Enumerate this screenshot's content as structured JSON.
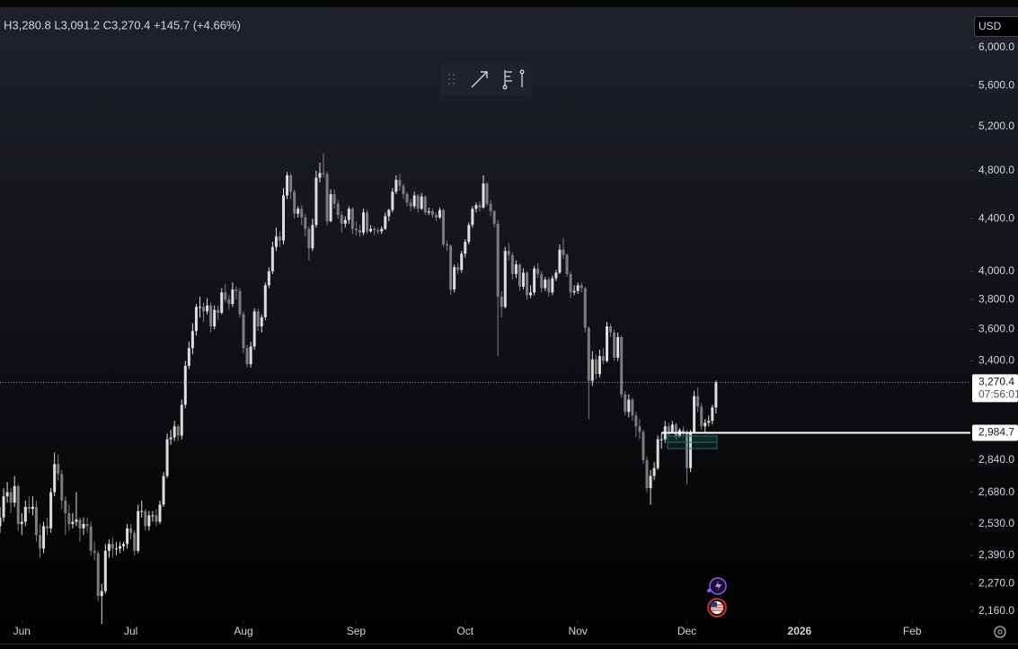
{
  "chart_data": {
    "type": "candlestick",
    "legend_text": "H3,280.8 L3,091.2 C3,270.4 +145.7 (+4.66%)",
    "currency": "USD",
    "log": true,
    "up_color": "#dcdcdc",
    "down_color": "#7c7c80",
    "xlim": [
      -6,
      261
    ],
    "ylim": [
      2125,
      6435
    ],
    "xticks": [
      {
        "value": 0,
        "label": "Jun"
      },
      {
        "value": 30,
        "label": "Jul"
      },
      {
        "value": 61,
        "label": "Aug"
      },
      {
        "value": 92,
        "label": "Sep"
      },
      {
        "value": 122,
        "label": "Oct"
      },
      {
        "value": 153,
        "label": "Nov"
      },
      {
        "value": 183,
        "label": "Dec"
      },
      {
        "value": 214,
        "label": "2026"
      },
      {
        "value": 245,
        "label": "Feb"
      }
    ],
    "yticks": [
      {
        "value": 6000,
        "label": "6,000.0"
      },
      {
        "value": 5600,
        "label": "5,600.0"
      },
      {
        "value": 5200,
        "label": "5,200.0"
      },
      {
        "value": 4800,
        "label": "4,800.0"
      },
      {
        "value": 4400,
        "label": "4,400.0"
      },
      {
        "value": 4000,
        "label": "4,000.0"
      },
      {
        "value": 3800,
        "label": "3,800.0"
      },
      {
        "value": 3600,
        "label": "3,600.0"
      },
      {
        "value": 3400,
        "label": "3,400.0"
      },
      {
        "value": 2840,
        "label": "2,840.0"
      },
      {
        "value": 2680,
        "label": "2,680.0"
      },
      {
        "value": 2530,
        "label": "2,530.0"
      },
      {
        "value": 2390,
        "label": "2,390.0"
      },
      {
        "value": 2270,
        "label": "2,270.0"
      },
      {
        "value": 2160,
        "label": "2,160.0"
      }
    ],
    "last_price": {
      "value": 3270.4,
      "label": "3,270.4",
      "countdown": "07:56:01"
    },
    "hline": {
      "value": 2984.7,
      "label": "2,984.7"
    },
    "x": [
      -6,
      -5,
      -4,
      -3,
      -2,
      -1,
      0,
      1,
      2,
      3,
      4,
      5,
      6,
      7,
      8,
      9,
      10,
      11,
      12,
      13,
      14,
      15,
      16,
      17,
      18,
      19,
      20,
      21,
      22,
      23,
      24,
      25,
      26,
      27,
      28,
      29,
      30,
      31,
      32,
      33,
      34,
      35,
      36,
      37,
      38,
      39,
      40,
      41,
      42,
      43,
      44,
      45,
      46,
      47,
      48,
      49,
      50,
      51,
      52,
      53,
      54,
      55,
      56,
      57,
      58,
      59,
      60,
      61,
      62,
      63,
      64,
      65,
      66,
      67,
      68,
      69,
      70,
      71,
      72,
      73,
      74,
      75,
      76,
      77,
      78,
      79,
      80,
      81,
      82,
      83,
      84,
      85,
      86,
      87,
      88,
      89,
      90,
      91,
      92,
      93,
      94,
      95,
      96,
      97,
      98,
      99,
      100,
      101,
      102,
      103,
      104,
      105,
      106,
      107,
      108,
      109,
      110,
      111,
      112,
      113,
      114,
      115,
      116,
      117,
      118,
      119,
      120,
      121,
      122,
      123,
      124,
      125,
      126,
      127,
      128,
      129,
      130,
      131,
      132,
      133,
      134,
      135,
      136,
      137,
      138,
      139,
      140,
      141,
      142,
      143,
      144,
      145,
      146,
      147,
      148,
      149,
      150,
      151,
      152,
      153,
      154,
      155,
      156,
      157,
      158,
      159,
      160,
      161,
      162,
      163,
      164,
      165,
      166,
      167,
      168,
      169,
      170,
      171,
      172,
      173,
      174,
      175,
      176,
      177,
      178,
      179,
      180,
      181,
      182,
      183,
      184,
      185,
      186,
      187,
      188,
      189,
      190,
      191
    ],
    "candles": [
      [
        2520,
        2610,
        2490,
        2560
      ],
      [
        2560,
        2700,
        2540,
        2660
      ],
      [
        2660,
        2730,
        2630,
        2680
      ],
      [
        2680,
        2700,
        2580,
        2630
      ],
      [
        2630,
        2760,
        2610,
        2710
      ],
      [
        2710,
        2720,
        2500,
        2530
      ],
      [
        2530,
        2580,
        2480,
        2540
      ],
      [
        2540,
        2640,
        2520,
        2610
      ],
      [
        2610,
        2660,
        2580,
        2600
      ],
      [
        2600,
        2660,
        2570,
        2610
      ],
      [
        2610,
        2640,
        2450,
        2480
      ],
      [
        2480,
        2530,
        2380,
        2420
      ],
      [
        2420,
        2540,
        2400,
        2520
      ],
      [
        2520,
        2560,
        2480,
        2510
      ],
      [
        2510,
        2700,
        2490,
        2680
      ],
      [
        2680,
        2880,
        2660,
        2820
      ],
      [
        2820,
        2870,
        2740,
        2770
      ],
      [
        2770,
        2790,
        2600,
        2640
      ],
      [
        2640,
        2660,
        2480,
        2580
      ],
      [
        2580,
        2620,
        2500,
        2530
      ],
      [
        2530,
        2580,
        2510,
        2540
      ],
      [
        2540,
        2680,
        2520,
        2550
      ],
      [
        2550,
        2560,
        2450,
        2510
      ],
      [
        2510,
        2560,
        2480,
        2530
      ],
      [
        2530,
        2560,
        2490,
        2520
      ],
      [
        2520,
        2540,
        2390,
        2410
      ],
      [
        2410,
        2450,
        2370,
        2400
      ],
      [
        2400,
        2410,
        2200,
        2220
      ],
      [
        2220,
        2270,
        2110,
        2240
      ],
      [
        2240,
        2440,
        2230,
        2410
      ],
      [
        2410,
        2460,
        2380,
        2440
      ],
      [
        2440,
        2470,
        2380,
        2420
      ],
      [
        2420,
        2450,
        2390,
        2420
      ],
      [
        2420,
        2450,
        2400,
        2430
      ],
      [
        2430,
        2450,
        2410,
        2440
      ],
      [
        2440,
        2530,
        2420,
        2510
      ],
      [
        2510,
        2530,
        2460,
        2490
      ],
      [
        2490,
        2500,
        2390,
        2410
      ],
      [
        2410,
        2620,
        2400,
        2590
      ],
      [
        2590,
        2640,
        2560,
        2590
      ],
      [
        2590,
        2600,
        2500,
        2520
      ],
      [
        2520,
        2590,
        2500,
        2570
      ],
      [
        2570,
        2590,
        2540,
        2570
      ],
      [
        2570,
        2600,
        2520,
        2540
      ],
      [
        2540,
        2640,
        2530,
        2620
      ],
      [
        2620,
        2780,
        2610,
        2760
      ],
      [
        2760,
        2980,
        2750,
        2950
      ],
      [
        2950,
        3000,
        2920,
        2960
      ],
      [
        2960,
        3050,
        2940,
        3020
      ],
      [
        3020,
        3030,
        2940,
        2970
      ],
      [
        2970,
        3170,
        2950,
        3140
      ],
      [
        3140,
        3400,
        3120,
        3370
      ],
      [
        3370,
        3520,
        3350,
        3480
      ],
      [
        3480,
        3640,
        3440,
        3590
      ],
      [
        3590,
        3770,
        3560,
        3750
      ],
      [
        3750,
        3820,
        3680,
        3750
      ],
      [
        3750,
        3780,
        3650,
        3720
      ],
      [
        3720,
        3810,
        3700,
        3760
      ],
      [
        3760,
        3780,
        3580,
        3620
      ],
      [
        3620,
        3760,
        3600,
        3730
      ],
      [
        3730,
        3760,
        3660,
        3710
      ],
      [
        3710,
        3880,
        3700,
        3850
      ],
      [
        3850,
        3910,
        3780,
        3800
      ],
      [
        3800,
        3830,
        3730,
        3770
      ],
      [
        3770,
        3920,
        3750,
        3870
      ],
      [
        3870,
        3890,
        3800,
        3860
      ],
      [
        3860,
        3880,
        3680,
        3700
      ],
      [
        3700,
        3720,
        3450,
        3480
      ],
      [
        3480,
        3500,
        3360,
        3380
      ],
      [
        3380,
        3520,
        3360,
        3490
      ],
      [
        3490,
        3740,
        3470,
        3720
      ],
      [
        3720,
        3740,
        3590,
        3620
      ],
      [
        3620,
        3700,
        3580,
        3680
      ],
      [
        3680,
        3920,
        3660,
        3900
      ],
      [
        3900,
        4030,
        3880,
        4000
      ],
      [
        4000,
        4220,
        3980,
        4180
      ],
      [
        4180,
        4330,
        4150,
        4260
      ],
      [
        4260,
        4300,
        4180,
        4230
      ],
      [
        4230,
        4650,
        4200,
        4590
      ],
      [
        4590,
        4790,
        4560,
        4760
      ],
      [
        4760,
        4780,
        4560,
        4620
      ],
      [
        4620,
        4640,
        4400,
        4440
      ],
      [
        4440,
        4500,
        4410,
        4480
      ],
      [
        4480,
        4510,
        4350,
        4410
      ],
      [
        4410,
        4440,
        4260,
        4320
      ],
      [
        4320,
        4340,
        4080,
        4170
      ],
      [
        4170,
        4400,
        4150,
        4350
      ],
      [
        4350,
        4800,
        4330,
        4740
      ],
      [
        4740,
        4870,
        4700,
        4780
      ],
      [
        4780,
        4950,
        4740,
        4770
      ],
      [
        4770,
        4790,
        4350,
        4380
      ],
      [
        4380,
        4640,
        4370,
        4600
      ],
      [
        4600,
        4640,
        4480,
        4520
      ],
      [
        4520,
        4550,
        4400,
        4430
      ],
      [
        4430,
        4460,
        4290,
        4360
      ],
      [
        4360,
        4420,
        4330,
        4390
      ],
      [
        4390,
        4500,
        4360,
        4480
      ],
      [
        4480,
        4490,
        4280,
        4320
      ],
      [
        4320,
        4380,
        4270,
        4310
      ],
      [
        4310,
        4350,
        4260,
        4290
      ],
      [
        4290,
        4480,
        4270,
        4450
      ],
      [
        4450,
        4470,
        4280,
        4300
      ],
      [
        4300,
        4350,
        4290,
        4320
      ],
      [
        4320,
        4340,
        4270,
        4310
      ],
      [
        4310,
        4330,
        4280,
        4300
      ],
      [
        4300,
        4340,
        4280,
        4320
      ],
      [
        4320,
        4450,
        4310,
        4420
      ],
      [
        4420,
        4480,
        4380,
        4470
      ],
      [
        4470,
        4650,
        4450,
        4620
      ],
      [
        4620,
        4760,
        4600,
        4720
      ],
      [
        4720,
        4770,
        4630,
        4670
      ],
      [
        4670,
        4690,
        4560,
        4600
      ],
      [
        4600,
        4620,
        4500,
        4530
      ],
      [
        4530,
        4560,
        4460,
        4500
      ],
      [
        4500,
        4620,
        4480,
        4590
      ],
      [
        4590,
        4600,
        4450,
        4480
      ],
      [
        4480,
        4610,
        4470,
        4580
      ],
      [
        4580,
        4590,
        4430,
        4450
      ],
      [
        4450,
        4490,
        4430,
        4460
      ],
      [
        4460,
        4480,
        4410,
        4430
      ],
      [
        4430,
        4450,
        4380,
        4410
      ],
      [
        4410,
        4490,
        4400,
        4470
      ],
      [
        4470,
        4480,
        4180,
        4200
      ],
      [
        4200,
        4230,
        4150,
        4190
      ],
      [
        4190,
        4200,
        3830,
        3870
      ],
      [
        3870,
        4050,
        3850,
        4030
      ],
      [
        4030,
        4060,
        3980,
        4010
      ],
      [
        4010,
        4150,
        3990,
        4130
      ],
      [
        4130,
        4240,
        4100,
        4220
      ],
      [
        4220,
        4370,
        4200,
        4350
      ],
      [
        4350,
        4500,
        4330,
        4480
      ],
      [
        4480,
        4530,
        4450,
        4510
      ],
      [
        4510,
        4540,
        4460,
        4490
      ],
      [
        4490,
        4760,
        4480,
        4690
      ],
      [
        4690,
        4700,
        4500,
        4520
      ],
      [
        4520,
        4550,
        4420,
        4460
      ],
      [
        4460,
        4470,
        4330,
        4360
      ],
      [
        4360,
        4390,
        3430,
        3820
      ],
      [
        3820,
        3860,
        3680,
        3750
      ],
      [
        3750,
        4180,
        3740,
        4150
      ],
      [
        4150,
        4210,
        4080,
        4120
      ],
      [
        4120,
        4140,
        3940,
        3980
      ],
      [
        3980,
        4080,
        3950,
        4050
      ],
      [
        4050,
        4060,
        3860,
        3890
      ],
      [
        3890,
        4020,
        3870,
        3990
      ],
      [
        3990,
        4000,
        3800,
        3830
      ],
      [
        3830,
        3900,
        3810,
        3850
      ],
      [
        3850,
        4040,
        3830,
        4020
      ],
      [
        4020,
        4060,
        3950,
        3980
      ],
      [
        3980,
        4000,
        3850,
        3880
      ],
      [
        3880,
        3960,
        3860,
        3940
      ],
      [
        3940,
        3960,
        3820,
        3850
      ],
      [
        3850,
        3970,
        3830,
        3950
      ],
      [
        3950,
        4010,
        3930,
        3990
      ],
      [
        3990,
        4200,
        3980,
        4160
      ],
      [
        4160,
        4250,
        4090,
        4120
      ],
      [
        4120,
        4130,
        3960,
        3980
      ],
      [
        3980,
        4000,
        3810,
        3850
      ],
      [
        3850,
        3900,
        3830,
        3860
      ],
      [
        3860,
        3920,
        3840,
        3900
      ],
      [
        3900,
        3920,
        3850,
        3880
      ],
      [
        3880,
        3890,
        3580,
        3610
      ],
      [
        3610,
        3620,
        3060,
        3280
      ],
      [
        3280,
        3460,
        3250,
        3410
      ],
      [
        3410,
        3440,
        3290,
        3320
      ],
      [
        3320,
        3470,
        3300,
        3430
      ],
      [
        3430,
        3480,
        3380,
        3400
      ],
      [
        3400,
        3650,
        3390,
        3620
      ],
      [
        3620,
        3640,
        3550,
        3580
      ],
      [
        3580,
        3600,
        3400,
        3420
      ],
      [
        3420,
        3580,
        3400,
        3550
      ],
      [
        3550,
        3560,
        3180,
        3200
      ],
      [
        3200,
        3220,
        3080,
        3100
      ],
      [
        3100,
        3200,
        3070,
        3170
      ],
      [
        3170,
        3180,
        3050,
        3080
      ],
      [
        3080,
        3100,
        2960,
        3020
      ],
      [
        3020,
        3060,
        2950,
        2990
      ],
      [
        2990,
        3000,
        2820,
        2840
      ],
      [
        2840,
        2860,
        2680,
        2700
      ],
      [
        2700,
        2790,
        2620,
        2760
      ],
      [
        2760,
        2830,
        2740,
        2800
      ],
      [
        2800,
        2970,
        2790,
        2950
      ],
      [
        2950,
        2980,
        2900,
        2950
      ],
      [
        2950,
        3050,
        2930,
        3020
      ],
      [
        3020,
        3040,
        2970,
        2990
      ],
      [
        2990,
        3050,
        2980,
        3030
      ],
      [
        3030,
        3040,
        2950,
        2970
      ],
      [
        2970,
        3010,
        2960,
        3000
      ],
      [
        3000,
        3020,
        2970,
        2990
      ],
      [
        2990,
        3000,
        2720,
        2800
      ],
      [
        2800,
        3000,
        2780,
        2990
      ],
      [
        2990,
        3220,
        2980,
        3190
      ],
      [
        3190,
        3240,
        3100,
        3130
      ],
      [
        3130,
        3150,
        3000,
        3020
      ],
      [
        3020,
        3060,
        2990,
        3040
      ],
      [
        3040,
        3080,
        3020,
        3050
      ],
      [
        3050,
        3140,
        3030,
        3124.7
      ],
      [
        3124.7,
        3280.8,
        3091.2,
        3270.4
      ]
    ]
  }
}
